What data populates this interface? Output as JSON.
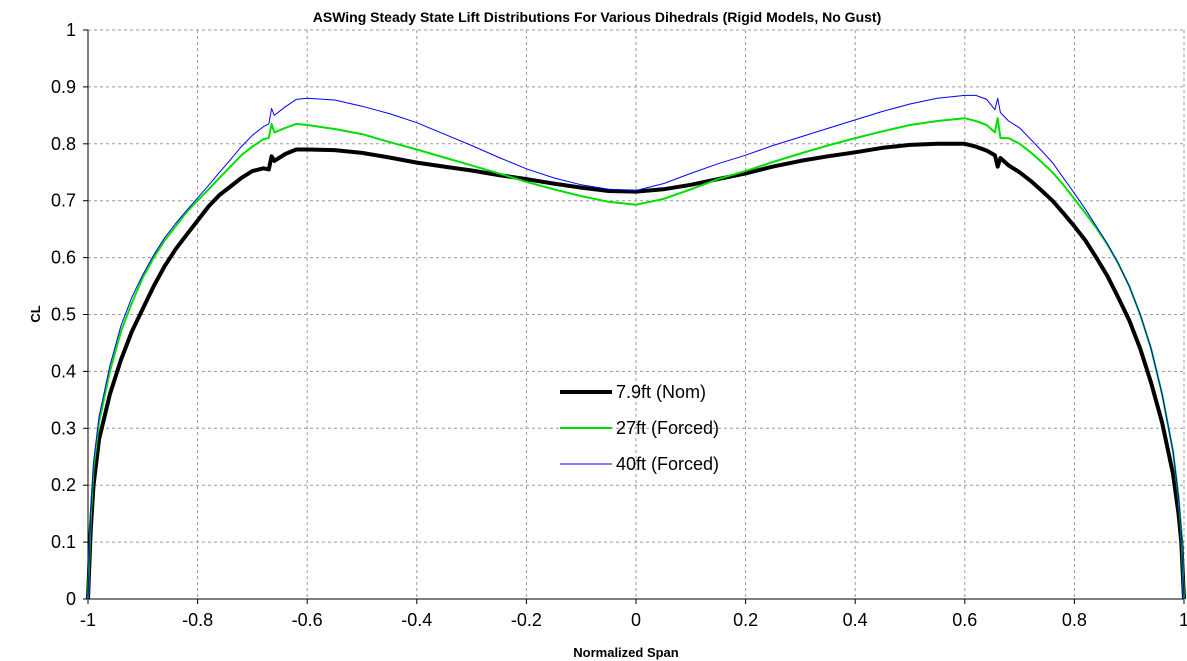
{
  "chart_data": {
    "type": "line",
    "title": "ASWing Steady State Lift Distributions For Various Dihedrals (Rigid Models, No Gust)",
    "xlabel": "Normalized Span",
    "ylabel": "CL",
    "xlim": [
      -1,
      1
    ],
    "ylim": [
      0,
      1
    ],
    "x_ticks": [
      "-1",
      "-0.8",
      "-0.6",
      "-0.4",
      "-0.2",
      "0",
      "0.2",
      "0.4",
      "0.6",
      "0.8",
      "1"
    ],
    "y_ticks": [
      "0",
      "0.1",
      "0.2",
      "0.3",
      "0.4",
      "0.5",
      "0.6",
      "0.7",
      "0.8",
      "0.9",
      "1"
    ],
    "grid": true,
    "legend_position": "center",
    "series": [
      {
        "name": "7.9ft (Nom)",
        "color": "#000000",
        "points": [
          [
            -1.0,
            0.0
          ],
          [
            -0.995,
            0.12
          ],
          [
            -0.99,
            0.2
          ],
          [
            -0.98,
            0.28
          ],
          [
            -0.96,
            0.36
          ],
          [
            -0.94,
            0.42
          ],
          [
            -0.92,
            0.47
          ],
          [
            -0.9,
            0.51
          ],
          [
            -0.88,
            0.55
          ],
          [
            -0.86,
            0.585
          ],
          [
            -0.84,
            0.615
          ],
          [
            -0.82,
            0.64
          ],
          [
            -0.8,
            0.665
          ],
          [
            -0.78,
            0.69
          ],
          [
            -0.76,
            0.71
          ],
          [
            -0.74,
            0.725
          ],
          [
            -0.72,
            0.74
          ],
          [
            -0.7,
            0.752
          ],
          [
            -0.68,
            0.757
          ],
          [
            -0.67,
            0.755
          ],
          [
            -0.665,
            0.778
          ],
          [
            -0.66,
            0.77
          ],
          [
            -0.64,
            0.782
          ],
          [
            -0.62,
            0.79
          ],
          [
            -0.6,
            0.79
          ],
          [
            -0.55,
            0.789
          ],
          [
            -0.5,
            0.784
          ],
          [
            -0.45,
            0.776
          ],
          [
            -0.4,
            0.767
          ],
          [
            -0.35,
            0.76
          ],
          [
            -0.3,
            0.753
          ],
          [
            -0.25,
            0.745
          ],
          [
            -0.2,
            0.738
          ],
          [
            -0.15,
            0.73
          ],
          [
            -0.1,
            0.723
          ],
          [
            -0.05,
            0.717
          ],
          [
            0.0,
            0.716
          ],
          [
            0.05,
            0.72
          ],
          [
            0.1,
            0.728
          ],
          [
            0.15,
            0.738
          ],
          [
            0.2,
            0.748
          ],
          [
            0.25,
            0.76
          ],
          [
            0.3,
            0.77
          ],
          [
            0.35,
            0.778
          ],
          [
            0.4,
            0.785
          ],
          [
            0.45,
            0.793
          ],
          [
            0.5,
            0.798
          ],
          [
            0.55,
            0.8
          ],
          [
            0.6,
            0.8
          ],
          [
            0.62,
            0.795
          ],
          [
            0.64,
            0.788
          ],
          [
            0.655,
            0.78
          ],
          [
            0.66,
            0.76
          ],
          [
            0.665,
            0.775
          ],
          [
            0.68,
            0.762
          ],
          [
            0.7,
            0.75
          ],
          [
            0.72,
            0.735
          ],
          [
            0.74,
            0.718
          ],
          [
            0.76,
            0.7
          ],
          [
            0.78,
            0.678
          ],
          [
            0.8,
            0.655
          ],
          [
            0.82,
            0.63
          ],
          [
            0.84,
            0.6
          ],
          [
            0.86,
            0.568
          ],
          [
            0.88,
            0.53
          ],
          [
            0.9,
            0.49
          ],
          [
            0.92,
            0.44
          ],
          [
            0.94,
            0.38
          ],
          [
            0.96,
            0.31
          ],
          [
            0.98,
            0.22
          ],
          [
            0.99,
            0.15
          ],
          [
            0.995,
            0.1
          ],
          [
            1.0,
            0.0
          ]
        ]
      },
      {
        "name": "27ft (Forced)",
        "color": "#00e000",
        "points": [
          [
            -1.0,
            0.0
          ],
          [
            -0.995,
            0.14
          ],
          [
            -0.99,
            0.23
          ],
          [
            -0.98,
            0.31
          ],
          [
            -0.96,
            0.4
          ],
          [
            -0.94,
            0.47
          ],
          [
            -0.92,
            0.52
          ],
          [
            -0.9,
            0.565
          ],
          [
            -0.88,
            0.6
          ],
          [
            -0.86,
            0.63
          ],
          [
            -0.84,
            0.655
          ],
          [
            -0.82,
            0.68
          ],
          [
            -0.8,
            0.7
          ],
          [
            -0.78,
            0.72
          ],
          [
            -0.76,
            0.74
          ],
          [
            -0.74,
            0.76
          ],
          [
            -0.72,
            0.78
          ],
          [
            -0.7,
            0.795
          ],
          [
            -0.68,
            0.808
          ],
          [
            -0.67,
            0.81
          ],
          [
            -0.665,
            0.835
          ],
          [
            -0.66,
            0.82
          ],
          [
            -0.64,
            0.828
          ],
          [
            -0.62,
            0.835
          ],
          [
            -0.6,
            0.833
          ],
          [
            -0.55,
            0.826
          ],
          [
            -0.5,
            0.817
          ],
          [
            -0.45,
            0.803
          ],
          [
            -0.4,
            0.79
          ],
          [
            -0.35,
            0.776
          ],
          [
            -0.3,
            0.762
          ],
          [
            -0.25,
            0.748
          ],
          [
            -0.2,
            0.733
          ],
          [
            -0.15,
            0.72
          ],
          [
            -0.1,
            0.708
          ],
          [
            -0.05,
            0.698
          ],
          [
            0.0,
            0.693
          ],
          [
            0.05,
            0.703
          ],
          [
            0.1,
            0.72
          ],
          [
            0.15,
            0.738
          ],
          [
            0.2,
            0.752
          ],
          [
            0.25,
            0.768
          ],
          [
            0.3,
            0.783
          ],
          [
            0.35,
            0.797
          ],
          [
            0.4,
            0.81
          ],
          [
            0.45,
            0.822
          ],
          [
            0.5,
            0.833
          ],
          [
            0.55,
            0.84
          ],
          [
            0.6,
            0.845
          ],
          [
            0.62,
            0.84
          ],
          [
            0.64,
            0.833
          ],
          [
            0.655,
            0.82
          ],
          [
            0.66,
            0.845
          ],
          [
            0.665,
            0.81
          ],
          [
            0.68,
            0.81
          ],
          [
            0.7,
            0.8
          ],
          [
            0.72,
            0.785
          ],
          [
            0.74,
            0.768
          ],
          [
            0.76,
            0.75
          ],
          [
            0.78,
            0.728
          ],
          [
            0.8,
            0.703
          ],
          [
            0.82,
            0.678
          ],
          [
            0.84,
            0.652
          ],
          [
            0.86,
            0.623
          ],
          [
            0.88,
            0.59
          ],
          [
            0.9,
            0.55
          ],
          [
            0.92,
            0.5
          ],
          [
            0.94,
            0.44
          ],
          [
            0.96,
            0.36
          ],
          [
            0.98,
            0.26
          ],
          [
            0.99,
            0.18
          ],
          [
            0.995,
            0.12
          ],
          [
            1.0,
            0.0
          ]
        ]
      },
      {
        "name": "40ft (Forced)",
        "color": "#0000ff",
        "points": [
          [
            -1.0,
            0.0
          ],
          [
            -0.995,
            0.15
          ],
          [
            -0.99,
            0.24
          ],
          [
            -0.98,
            0.32
          ],
          [
            -0.96,
            0.41
          ],
          [
            -0.94,
            0.48
          ],
          [
            -0.92,
            0.53
          ],
          [
            -0.9,
            0.57
          ],
          [
            -0.88,
            0.605
          ],
          [
            -0.86,
            0.635
          ],
          [
            -0.84,
            0.66
          ],
          [
            -0.82,
            0.683
          ],
          [
            -0.8,
            0.705
          ],
          [
            -0.78,
            0.727
          ],
          [
            -0.76,
            0.75
          ],
          [
            -0.74,
            0.772
          ],
          [
            -0.72,
            0.795
          ],
          [
            -0.7,
            0.815
          ],
          [
            -0.68,
            0.83
          ],
          [
            -0.67,
            0.835
          ],
          [
            -0.665,
            0.862
          ],
          [
            -0.66,
            0.85
          ],
          [
            -0.64,
            0.865
          ],
          [
            -0.62,
            0.878
          ],
          [
            -0.6,
            0.88
          ],
          [
            -0.55,
            0.877
          ],
          [
            -0.5,
            0.866
          ],
          [
            -0.45,
            0.853
          ],
          [
            -0.4,
            0.837
          ],
          [
            -0.35,
            0.817
          ],
          [
            -0.3,
            0.797
          ],
          [
            -0.25,
            0.776
          ],
          [
            -0.2,
            0.756
          ],
          [
            -0.15,
            0.74
          ],
          [
            -0.1,
            0.728
          ],
          [
            -0.05,
            0.72
          ],
          [
            0.0,
            0.718
          ],
          [
            0.05,
            0.73
          ],
          [
            0.1,
            0.748
          ],
          [
            0.15,
            0.765
          ],
          [
            0.2,
            0.78
          ],
          [
            0.25,
            0.797
          ],
          [
            0.3,
            0.812
          ],
          [
            0.35,
            0.827
          ],
          [
            0.4,
            0.842
          ],
          [
            0.45,
            0.857
          ],
          [
            0.5,
            0.87
          ],
          [
            0.55,
            0.88
          ],
          [
            0.6,
            0.885
          ],
          [
            0.62,
            0.885
          ],
          [
            0.64,
            0.878
          ],
          [
            0.655,
            0.86
          ],
          [
            0.66,
            0.88
          ],
          [
            0.665,
            0.855
          ],
          [
            0.68,
            0.84
          ],
          [
            0.7,
            0.828
          ],
          [
            0.72,
            0.808
          ],
          [
            0.74,
            0.788
          ],
          [
            0.76,
            0.767
          ],
          [
            0.78,
            0.74
          ],
          [
            0.8,
            0.713
          ],
          [
            0.82,
            0.685
          ],
          [
            0.84,
            0.655
          ],
          [
            0.86,
            0.625
          ],
          [
            0.88,
            0.59
          ],
          [
            0.9,
            0.55
          ],
          [
            0.92,
            0.5
          ],
          [
            0.94,
            0.44
          ],
          [
            0.96,
            0.36
          ],
          [
            0.98,
            0.26
          ],
          [
            0.99,
            0.18
          ],
          [
            0.995,
            0.12
          ],
          [
            1.0,
            0.0
          ]
        ]
      }
    ]
  }
}
